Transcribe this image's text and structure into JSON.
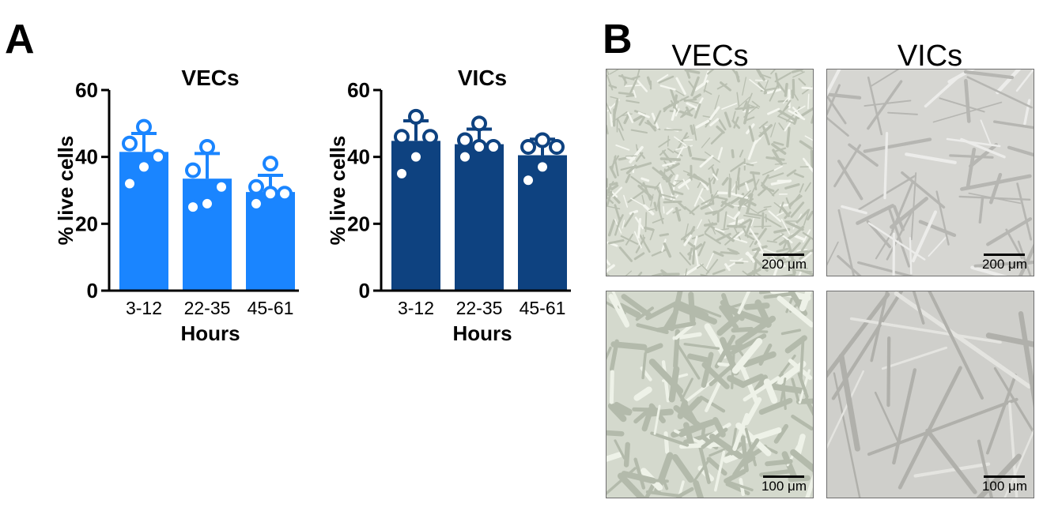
{
  "panels": {
    "a": "A",
    "b": "B"
  },
  "chart_data": [
    {
      "type": "bar",
      "title": "VECs",
      "xlabel": "Hours",
      "ylabel": "% live cells",
      "categories": [
        "3-12",
        "22-35",
        "45-61"
      ],
      "values": [
        41.5,
        33.5,
        29.5
      ],
      "error": [
        5.5,
        7.5,
        5.0
      ],
      "points": [
        [
          49,
          44,
          40,
          37,
          32
        ],
        [
          43,
          36,
          31,
          26,
          25
        ],
        [
          38,
          31,
          29,
          29,
          26
        ]
      ],
      "ylim": [
        0,
        60
      ],
      "yticks": [
        0,
        20,
        40,
        60
      ],
      "color": "#1a85ff"
    },
    {
      "type": "bar",
      "title": "VICs",
      "xlabel": "Hours",
      "ylabel": "% live cells",
      "categories": [
        "3-12",
        "22-35",
        "45-61"
      ],
      "values": [
        44.8,
        43.8,
        40.5
      ],
      "error": [
        6.0,
        4.5,
        4.8
      ],
      "points": [
        [
          52,
          46,
          46,
          40,
          35
        ],
        [
          50,
          45,
          43,
          43,
          40
        ],
        [
          45,
          43,
          43,
          37,
          33
        ]
      ],
      "ylim": [
        0,
        60
      ],
      "yticks": [
        0,
        20,
        40,
        60
      ],
      "color": "#0e4280"
    }
  ],
  "micrographs": {
    "columns": [
      "VECs",
      "VICs"
    ],
    "images": [
      {
        "name": "vecs-low-mag",
        "scale": "200 μm"
      },
      {
        "name": "vics-low-mag",
        "scale": "200 μm"
      },
      {
        "name": "vecs-high-mag",
        "scale": "100 μm"
      },
      {
        "name": "vics-high-mag",
        "scale": "100 μm"
      }
    ]
  }
}
